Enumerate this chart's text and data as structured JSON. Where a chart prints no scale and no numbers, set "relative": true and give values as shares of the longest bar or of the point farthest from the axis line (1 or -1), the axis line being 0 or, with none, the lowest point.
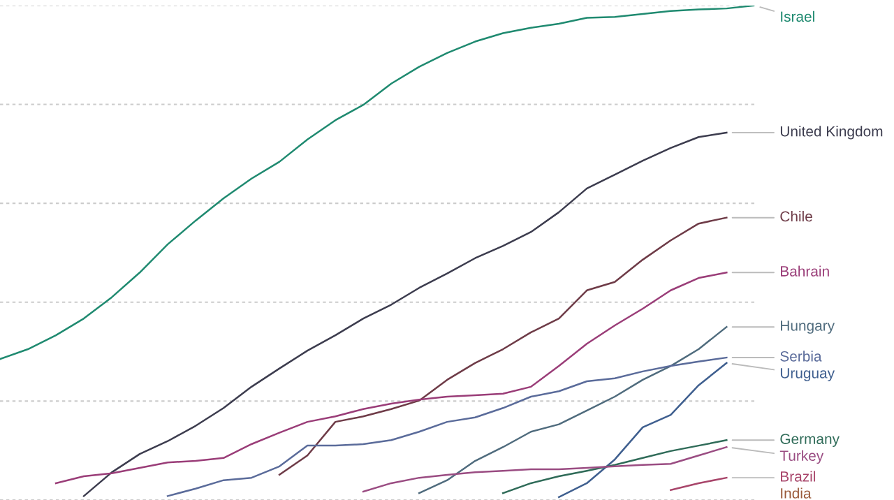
{
  "chart_data": {
    "type": "line",
    "relative": true,
    "grid": "y",
    "categories": [
      null,
      null,
      null,
      null,
      null,
      null,
      null,
      null,
      null,
      null,
      null,
      null,
      null,
      null,
      null,
      null,
      null,
      null,
      null,
      null,
      null,
      null,
      null,
      null,
      null,
      null,
      null,
      null
    ],
    "series": [
      {
        "name": "Israel",
        "color": "#1f8a70",
        "values": [
          0.285,
          0.305,
          0.333,
          0.367,
          0.41,
          0.46,
          0.517,
          0.565,
          0.61,
          0.65,
          0.684,
          0.729,
          0.768,
          0.799,
          0.842,
          0.876,
          0.904,
          0.927,
          0.944,
          0.955,
          0.963,
          0.975,
          0.977,
          0.983,
          0.989,
          0.992,
          0.994,
          1.0
        ]
      },
      {
        "name": "United Kingdom",
        "color": "#3c3c4e",
        "values": [
          null,
          null,
          null,
          0.008,
          0.056,
          0.093,
          0.119,
          0.15,
          0.186,
          0.229,
          0.266,
          0.302,
          0.333,
          0.367,
          0.395,
          0.429,
          0.458,
          0.489,
          0.514,
          0.542,
          0.582,
          0.63,
          0.658,
          0.686,
          0.712,
          0.734,
          0.743,
          null
        ]
      },
      {
        "name": "Chile",
        "color": "#6e3b47",
        "values": [
          null,
          null,
          null,
          null,
          null,
          null,
          null,
          null,
          null,
          null,
          0.051,
          0.09,
          0.158,
          0.169,
          0.184,
          0.201,
          0.243,
          0.277,
          0.305,
          0.339,
          0.367,
          0.424,
          0.441,
          0.486,
          0.525,
          0.559,
          0.571,
          null
        ]
      },
      {
        "name": "Bahrain",
        "color": "#9a3d78",
        "values": [
          null,
          null,
          0.034,
          0.048,
          0.054,
          0.065,
          0.076,
          0.079,
          0.085,
          0.113,
          0.136,
          0.158,
          0.169,
          0.184,
          0.195,
          0.203,
          0.209,
          0.212,
          0.215,
          0.229,
          0.271,
          0.316,
          0.353,
          0.387,
          0.424,
          0.449,
          0.46,
          null
        ]
      },
      {
        "name": "Hungary",
        "color": "#4f6b7d",
        "values": [
          null,
          null,
          null,
          null,
          null,
          null,
          null,
          null,
          null,
          null,
          null,
          null,
          null,
          null,
          null,
          0.014,
          0.04,
          0.079,
          0.107,
          0.138,
          0.153,
          0.181,
          0.209,
          0.243,
          0.271,
          0.305,
          0.35,
          null
        ]
      },
      {
        "name": "Serbia",
        "color": "#5a6b9a",
        "values": [
          null,
          null,
          null,
          null,
          null,
          null,
          0.008,
          0.023,
          0.04,
          0.045,
          0.068,
          0.11,
          0.11,
          0.113,
          0.121,
          0.138,
          0.158,
          0.167,
          0.186,
          0.209,
          0.22,
          0.24,
          0.246,
          0.26,
          0.271,
          0.28,
          0.288,
          null
        ]
      },
      {
        "name": "Uruguay",
        "color": "#3f5f8f",
        "values": [
          null,
          null,
          null,
          null,
          null,
          null,
          null,
          null,
          null,
          null,
          null,
          null,
          null,
          null,
          null,
          null,
          null,
          null,
          null,
          null,
          0.006,
          0.034,
          0.082,
          0.147,
          0.172,
          0.232,
          0.277,
          null
        ]
      },
      {
        "name": "Germany",
        "color": "#2f6b58",
        "values": [
          null,
          null,
          null,
          null,
          null,
          null,
          null,
          null,
          null,
          null,
          null,
          null,
          null,
          null,
          null,
          null,
          null,
          null,
          0.014,
          0.034,
          0.048,
          0.059,
          0.071,
          0.085,
          0.099,
          0.11,
          0.121,
          null
        ]
      },
      {
        "name": "Turkey",
        "color": "#9a4c82",
        "values": [
          null,
          null,
          null,
          null,
          null,
          null,
          null,
          null,
          null,
          null,
          null,
          null,
          null,
          0.017,
          0.034,
          0.045,
          0.051,
          0.056,
          0.059,
          0.062,
          0.062,
          0.065,
          0.068,
          0.071,
          0.073,
          0.09,
          0.107,
          null
        ]
      },
      {
        "name": "Brazil",
        "color": "#a8456a",
        "values": [
          null,
          null,
          null,
          null,
          null,
          null,
          null,
          null,
          null,
          null,
          null,
          null,
          null,
          null,
          null,
          null,
          null,
          null,
          null,
          null,
          null,
          null,
          null,
          null,
          0.02,
          0.034,
          0.045,
          null
        ]
      }
    ],
    "annotations": [
      "India"
    ]
  }
}
